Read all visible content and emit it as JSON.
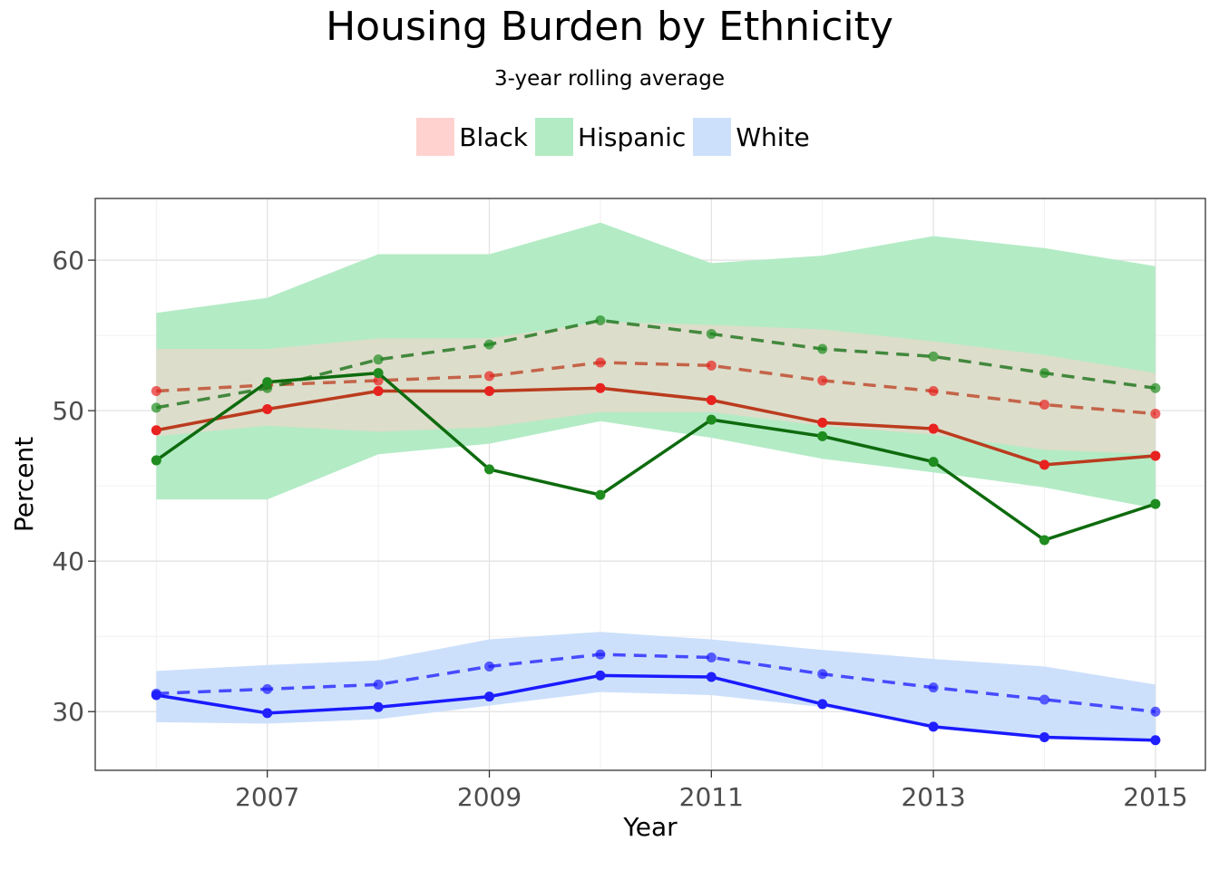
{
  "chart_data": {
    "type": "line",
    "title": "Housing Burden by Ethnicity",
    "subtitle": "3-year rolling average",
    "xlabel": "Year",
    "ylabel": "Percent",
    "x": [
      2006,
      2007,
      2008,
      2009,
      2010,
      2011,
      2012,
      2013,
      2014,
      2015
    ],
    "xticks": [
      "2007",
      "2009",
      "2011",
      "2013",
      "2015"
    ],
    "yticks": [
      "30",
      "40",
      "50",
      "60"
    ],
    "xlim": [
      2005.45,
      2015.45
    ],
    "ylim": [
      26.1,
      64.1
    ],
    "grid": true,
    "legend_position": "top",
    "series": [
      {
        "name": "Black",
        "color": "#bb3b1e",
        "point_color": "#e8221f",
        "fill_color": "#ffd2cf",
        "values": [
          48.7,
          50.1,
          51.3,
          51.3,
          51.5,
          50.7,
          49.2,
          48.8,
          46.4,
          47.0
        ],
        "rolling_average": [
          51.3,
          51.7,
          52.0,
          52.3,
          53.2,
          53.0,
          52.0,
          51.3,
          50.4,
          49.8
        ],
        "band_upper": [
          54.1,
          54.1,
          54.8,
          54.8,
          55.9,
          55.7,
          55.4,
          54.6,
          53.7,
          52.5
        ],
        "band_lower": [
          48.3,
          49.0,
          48.6,
          48.9,
          49.9,
          49.9,
          49.0,
          48.4,
          47.4,
          47.1
        ]
      },
      {
        "name": "Hispanic",
        "color": "#0e6b0e",
        "point_color": "#1f8c1f",
        "fill_color": "#b3ebc5",
        "values": [
          46.7,
          51.9,
          52.5,
          46.1,
          44.4,
          49.4,
          48.3,
          46.6,
          41.4,
          43.8
        ],
        "rolling_average": [
          50.2,
          51.5,
          53.4,
          54.4,
          56.0,
          55.1,
          54.1,
          53.6,
          52.5,
          51.5
        ],
        "band_upper": [
          56.5,
          57.5,
          60.4,
          60.4,
          62.5,
          59.8,
          60.3,
          61.6,
          60.8,
          59.6
        ],
        "band_lower": [
          44.1,
          44.1,
          47.1,
          47.8,
          49.3,
          48.2,
          46.8,
          45.9,
          44.9,
          43.5
        ]
      },
      {
        "name": "White",
        "color": "#1a1aff",
        "point_color": "#2020ff",
        "fill_color": "#cde0fb",
        "values": [
          31.1,
          29.9,
          30.3,
          31.0,
          32.4,
          32.3,
          30.5,
          29.0,
          28.3,
          28.1
        ],
        "rolling_average": [
          31.2,
          31.5,
          31.8,
          33.0,
          33.8,
          33.6,
          32.5,
          31.6,
          30.8,
          30.0
        ],
        "band_upper": [
          32.7,
          33.1,
          33.4,
          34.8,
          35.3,
          34.8,
          34.1,
          33.5,
          33.0,
          31.8
        ],
        "band_lower": [
          29.3,
          29.2,
          29.5,
          30.4,
          31.3,
          31.1,
          30.3,
          29.1,
          28.3,
          28.0
        ]
      }
    ]
  }
}
